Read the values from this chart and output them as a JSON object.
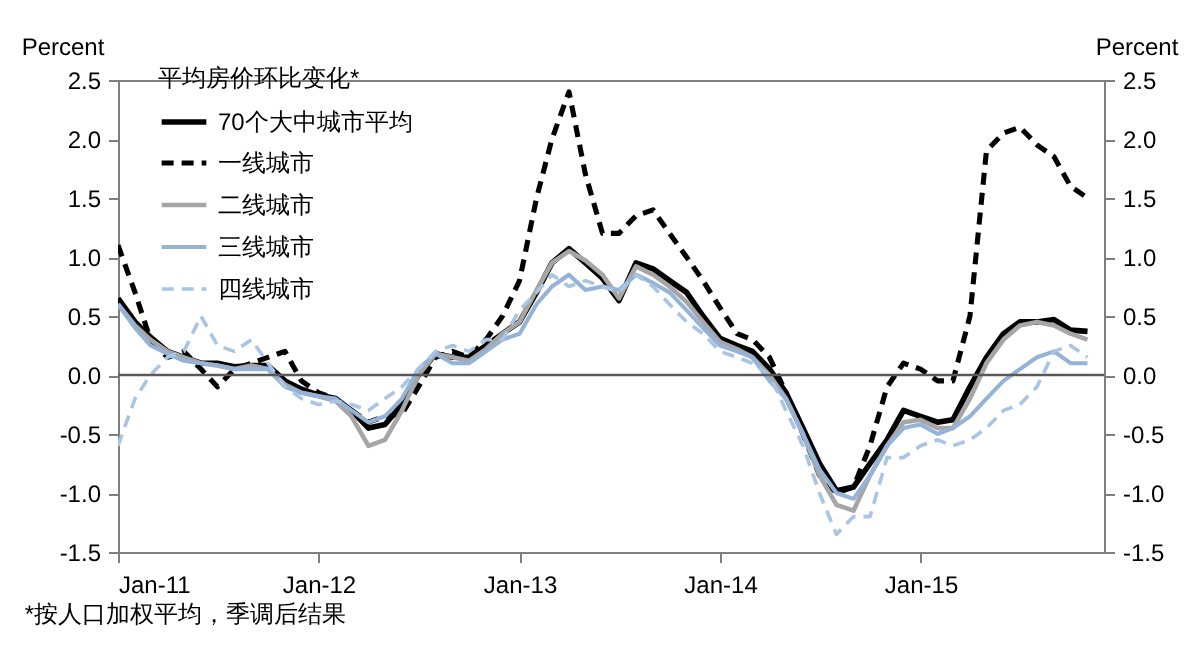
{
  "chart_data": {
    "type": "line",
    "legend_title": "平均房价环比变化*",
    "ylabel": "Percent",
    "y2label": "Percent",
    "annotations": [
      "*按人口加权平均，季调后结果"
    ],
    "x": [
      "2011-01",
      "2011-02",
      "2011-03",
      "2011-04",
      "2011-05",
      "2011-06",
      "2011-07",
      "2011-08",
      "2011-09",
      "2011-10",
      "2011-11",
      "2011-12",
      "2012-01",
      "2012-02",
      "2012-03",
      "2012-04",
      "2012-05",
      "2012-06",
      "2012-07",
      "2012-08",
      "2012-09",
      "2012-10",
      "2012-11",
      "2012-12",
      "2013-01",
      "2013-02",
      "2013-03",
      "2013-04",
      "2013-05",
      "2013-06",
      "2013-07",
      "2013-08",
      "2013-09",
      "2013-10",
      "2013-11",
      "2013-12",
      "2014-01",
      "2014-02",
      "2014-03",
      "2014-04",
      "2014-05",
      "2014-06",
      "2014-07",
      "2014-08",
      "2014-09",
      "2014-10",
      "2014-11",
      "2014-12",
      "2015-01",
      "2015-02",
      "2015-03",
      "2015-04",
      "2015-05",
      "2015-06",
      "2015-07",
      "2015-08",
      "2015-09",
      "2015-10",
      "2015-11"
    ],
    "series": [
      {
        "name": "70个大中城市平均",
        "color": "#000000",
        "line_style": "solid",
        "values": [
          0.65,
          0.45,
          0.32,
          0.2,
          0.15,
          0.1,
          0.1,
          0.07,
          0.08,
          0.08,
          -0.05,
          -0.12,
          -0.17,
          -0.2,
          -0.3,
          -0.45,
          -0.42,
          -0.25,
          0.0,
          0.18,
          0.15,
          0.15,
          0.25,
          0.35,
          0.45,
          0.7,
          0.95,
          1.07,
          0.95,
          0.82,
          0.63,
          0.95,
          0.9,
          0.8,
          0.7,
          0.5,
          0.31,
          0.25,
          0.2,
          0.05,
          -0.15,
          -0.45,
          -0.75,
          -0.98,
          -0.95,
          -0.75,
          -0.55,
          -0.3,
          -0.35,
          -0.4,
          -0.38,
          -0.1,
          0.15,
          0.35,
          0.45,
          0.45,
          0.47,
          0.38,
          0.37
        ]
      },
      {
        "name": "一线城市",
        "color": "#000000",
        "line_style": "dashed",
        "values": [
          1.1,
          0.7,
          0.3,
          0.15,
          0.2,
          0.05,
          -0.1,
          0.05,
          0.1,
          0.15,
          0.2,
          -0.05,
          -0.15,
          -0.2,
          -0.3,
          -0.4,
          -0.35,
          -0.33,
          -0.1,
          0.15,
          0.2,
          0.15,
          0.3,
          0.5,
          0.8,
          1.5,
          2.0,
          2.4,
          1.7,
          1.2,
          1.2,
          1.35,
          1.4,
          1.2,
          1.0,
          0.8,
          0.57,
          0.35,
          0.3,
          0.15,
          -0.15,
          -0.5,
          -0.85,
          -1.0,
          -0.95,
          -0.6,
          -0.1,
          0.1,
          0.05,
          -0.05,
          -0.05,
          0.5,
          1.9,
          2.05,
          2.1,
          1.95,
          1.85,
          1.6,
          1.5
        ]
      },
      {
        "name": "二线城市",
        "color": "#a6a6a6",
        "line_style": "solid",
        "values": [
          0.6,
          0.42,
          0.3,
          0.2,
          0.15,
          0.1,
          0.08,
          0.05,
          0.08,
          0.05,
          -0.08,
          -0.15,
          -0.18,
          -0.22,
          -0.35,
          -0.6,
          -0.55,
          -0.3,
          0.0,
          0.18,
          0.15,
          0.12,
          0.22,
          0.35,
          0.45,
          0.72,
          0.95,
          1.05,
          0.97,
          0.85,
          0.65,
          0.92,
          0.85,
          0.75,
          0.62,
          0.45,
          0.28,
          0.22,
          0.15,
          0.0,
          -0.2,
          -0.5,
          -0.85,
          -1.1,
          -1.15,
          -0.85,
          -0.6,
          -0.4,
          -0.38,
          -0.45,
          -0.45,
          -0.2,
          0.1,
          0.3,
          0.42,
          0.45,
          0.42,
          0.35,
          0.3
        ]
      },
      {
        "name": "三线城市",
        "color": "#95b3d7",
        "line_style": "solid",
        "values": [
          0.6,
          0.4,
          0.25,
          0.18,
          0.12,
          0.1,
          0.08,
          0.05,
          0.05,
          0.05,
          -0.1,
          -0.15,
          -0.18,
          -0.2,
          -0.3,
          -0.4,
          -0.35,
          -0.2,
          0.05,
          0.18,
          0.1,
          0.1,
          0.2,
          0.3,
          0.35,
          0.6,
          0.75,
          0.85,
          0.72,
          0.75,
          0.72,
          0.85,
          0.78,
          0.7,
          0.55,
          0.4,
          0.25,
          0.2,
          0.15,
          -0.05,
          -0.2,
          -0.5,
          -0.8,
          -1.0,
          -1.05,
          -0.85,
          -0.6,
          -0.45,
          -0.42,
          -0.5,
          -0.45,
          -0.35,
          -0.2,
          -0.05,
          0.05,
          0.15,
          0.2,
          0.1,
          0.1
        ]
      },
      {
        "name": "四线城市",
        "color": "#a9c4e4",
        "line_style": "dashed",
        "values": [
          -0.6,
          -0.2,
          0.0,
          0.15,
          0.2,
          0.5,
          0.25,
          0.2,
          0.3,
          0.1,
          -0.1,
          -0.2,
          -0.25,
          -0.22,
          -0.25,
          -0.3,
          -0.2,
          -0.1,
          0.05,
          0.2,
          0.25,
          0.2,
          0.3,
          0.3,
          0.55,
          0.7,
          0.85,
          0.75,
          0.8,
          0.75,
          0.7,
          0.85,
          0.75,
          0.6,
          0.45,
          0.35,
          0.2,
          0.15,
          0.1,
          0.0,
          -0.3,
          -0.6,
          -1.0,
          -1.35,
          -1.2,
          -1.2,
          -0.7,
          -0.7,
          -0.6,
          -0.55,
          -0.6,
          -0.55,
          -0.45,
          -0.3,
          -0.25,
          -0.1,
          0.2,
          0.25,
          0.15
        ]
      }
    ],
    "xlim": [
      "2011-01",
      "2015-12"
    ],
    "xticks": [
      {
        "value": "2011-01",
        "label": "Jan-11"
      },
      {
        "value": "2012-01",
        "label": "Jan-12"
      },
      {
        "value": "2013-01",
        "label": "Jan-13"
      },
      {
        "value": "2014-01",
        "label": "Jan-14"
      },
      {
        "value": "2015-01",
        "label": "Jan-15"
      }
    ],
    "ylim": [
      -1.5,
      2.5
    ],
    "yticks": [
      -1.5,
      {
        "value": -1,
        "label": "-1.0"
      },
      -0.5,
      {
        "value": 0,
        "label": "0.0"
      },
      0.5,
      {
        "value": 1,
        "label": "1.0"
      },
      1.5,
      {
        "value": 2,
        "label": "2.0"
      },
      2.5
    ],
    "y2lim": [
      -1.5,
      2.5
    ],
    "y2ticks": [
      -1.5,
      {
        "value": -1,
        "label": "-1.0"
      },
      -0.5,
      {
        "value": 0,
        "label": "0.0"
      },
      0.5,
      {
        "value": 1,
        "label": "1.0"
      },
      1.5,
      {
        "value": 2,
        "label": "2.0"
      },
      2.5
    ],
    "ref_lines": [
      {
        "axis": "y",
        "value": 0,
        "color": "#595959"
      }
    ],
    "legend": "top left"
  }
}
